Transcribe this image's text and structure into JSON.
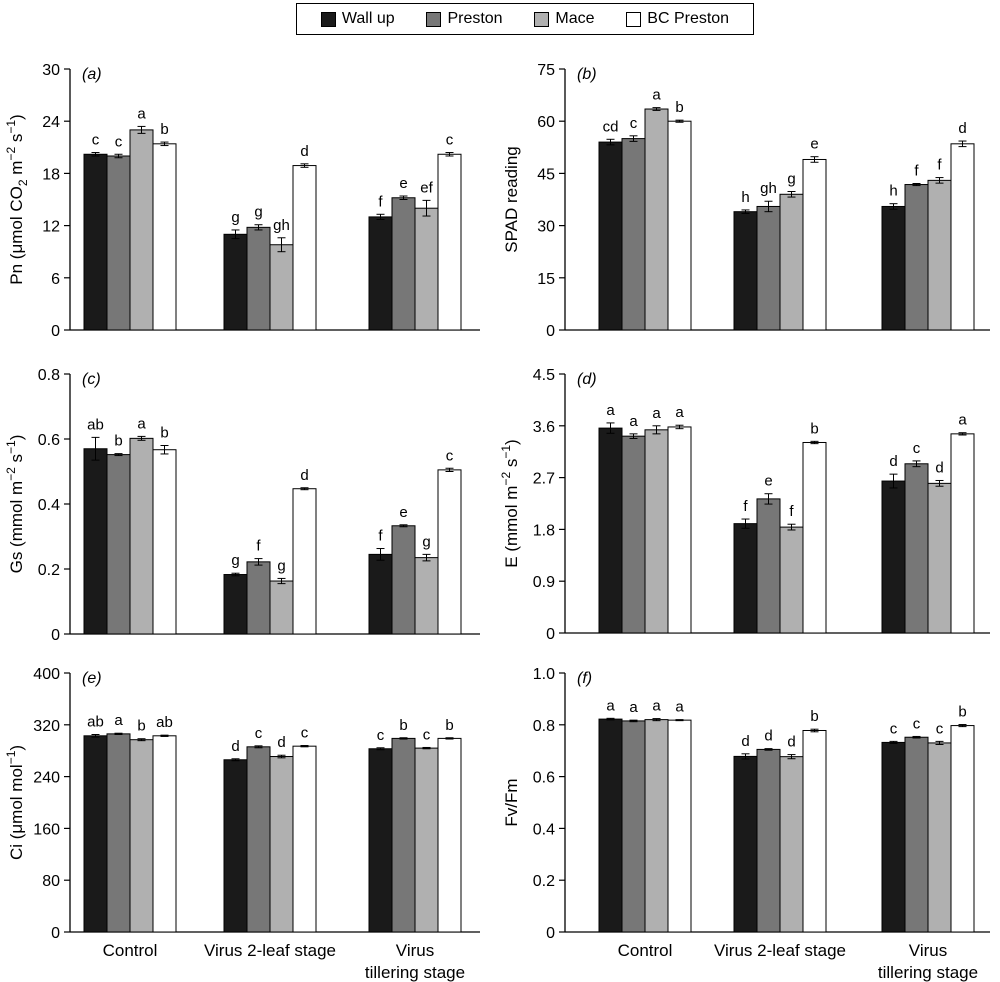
{
  "legend": [
    {
      "name": "Wall up",
      "color": "#1a1a1a"
    },
    {
      "name": "Preston",
      "color": "#777777"
    },
    {
      "name": "Mace",
      "color": "#b0b0b0"
    },
    {
      "name": "BC Preston",
      "color": "#ffffff"
    }
  ],
  "chart_data": [
    {
      "type": "bar",
      "panel": "(a)",
      "ylabel_base": "Pn (μmol CO",
      "ylabel_sub": "2",
      "ylabel_mid": " m",
      "ylabel_sup1": "−2",
      "ylabel_mid2": " s",
      "ylabel_sup2": "−1",
      "ylabel_end": ")",
      "ylim": [
        0,
        30
      ],
      "yticks": [
        "0",
        "6",
        "12",
        "18",
        "24",
        "30"
      ],
      "ytick_values": [
        0,
        6,
        12,
        18,
        24,
        30
      ],
      "categories": [
        "Control",
        "Virus 2-leaf stage",
        "Virus tillering stage"
      ],
      "series": [
        {
          "name": "Wall up",
          "values": [
            20.2,
            11.0,
            13.0
          ],
          "errors": [
            0.2,
            0.5,
            0.3
          ],
          "letters": [
            "c",
            "g",
            "f"
          ]
        },
        {
          "name": "Preston",
          "values": [
            20.0,
            11.8,
            15.2
          ],
          "errors": [
            0.2,
            0.3,
            0.2
          ],
          "letters": [
            "c",
            "g",
            "e"
          ]
        },
        {
          "name": "Mace",
          "values": [
            23.0,
            9.8,
            14.0
          ],
          "errors": [
            0.4,
            0.8,
            0.9
          ],
          "letters": [
            "a",
            "gh",
            "ef"
          ]
        },
        {
          "name": "BC Preston",
          "values": [
            21.4,
            18.9,
            20.2
          ],
          "errors": [
            0.2,
            0.2,
            0.2
          ],
          "letters": [
            "b",
            "d",
            "c"
          ]
        }
      ]
    },
    {
      "type": "bar",
      "panel": "(b)",
      "ylabel_base": "SPAD reading",
      "ylim": [
        0,
        75
      ],
      "yticks": [
        "0",
        "15",
        "30",
        "45",
        "60",
        "75"
      ],
      "ytick_values": [
        0,
        15,
        30,
        45,
        60,
        75
      ],
      "categories": [
        "Control",
        "Virus 2-leaf stage",
        "Virus tillering stage"
      ],
      "series": [
        {
          "name": "Wall up",
          "values": [
            54.0,
            34.0,
            35.5
          ],
          "errors": [
            0.8,
            0.5,
            0.8
          ],
          "letters": [
            "cd",
            "h",
            "h"
          ]
        },
        {
          "name": "Preston",
          "values": [
            55.0,
            35.5,
            41.8
          ],
          "errors": [
            0.8,
            1.5,
            0.3
          ],
          "letters": [
            "c",
            "gh",
            "f"
          ]
        },
        {
          "name": "Mace",
          "values": [
            63.5,
            39.0,
            43.0
          ],
          "errors": [
            0.4,
            0.8,
            0.8
          ],
          "letters": [
            "a",
            "g",
            "f"
          ]
        },
        {
          "name": "BC Preston",
          "values": [
            60.0,
            49.0,
            53.5
          ],
          "errors": [
            0.3,
            0.8,
            0.8
          ],
          "letters": [
            "b",
            "e",
            "d"
          ]
        }
      ]
    },
    {
      "type": "bar",
      "panel": "(c)",
      "ylabel_base": "Gs (mmol m",
      "ylabel_sup1": "−2",
      "ylabel_mid2": " s",
      "ylabel_sup2": "−1",
      "ylabel_end": ")",
      "ylim": [
        0,
        0.8
      ],
      "yticks": [
        "0",
        "0.2",
        "0.4",
        "0.6",
        "0.8"
      ],
      "ytick_values": [
        0,
        0.2,
        0.4,
        0.6,
        0.8
      ],
      "categories": [
        "Control",
        "Virus 2-leaf stage",
        "Virus tillering stage"
      ],
      "series": [
        {
          "name": "Wall up",
          "values": [
            0.57,
            0.183,
            0.245
          ],
          "errors": [
            0.035,
            0.004,
            0.018
          ],
          "letters": [
            "ab",
            "g",
            "f"
          ]
        },
        {
          "name": "Preston",
          "values": [
            0.552,
            0.222,
            0.333
          ],
          "errors": [
            0.003,
            0.01,
            0.003
          ],
          "letters": [
            "b",
            "f",
            "e"
          ]
        },
        {
          "name": "Mace",
          "values": [
            0.602,
            0.163,
            0.235
          ],
          "errors": [
            0.006,
            0.008,
            0.01
          ],
          "letters": [
            "a",
            "g",
            "g"
          ]
        },
        {
          "name": "BC Preston",
          "values": [
            0.567,
            0.447,
            0.505
          ],
          "errors": [
            0.013,
            0.003,
            0.005
          ],
          "letters": [
            "b",
            "d",
            "c"
          ]
        }
      ]
    },
    {
      "type": "bar",
      "panel": "(d)",
      "ylabel_base": "E (mmol m",
      "ylabel_sup1": "−2",
      "ylabel_mid2": " s",
      "ylabel_sup2": "−1",
      "ylabel_end": ")",
      "ylim": [
        0,
        4.5
      ],
      "yticks": [
        "0",
        "0.9",
        "1.8",
        "2.7",
        "3.6",
        "4.5"
      ],
      "ytick_values": [
        0,
        0.9,
        1.8,
        2.7,
        3.6,
        4.5
      ],
      "categories": [
        "Control",
        "Virus 2-leaf stage",
        "Virus tillering stage"
      ],
      "series": [
        {
          "name": "Wall up",
          "values": [
            3.56,
            1.9,
            2.64
          ],
          "errors": [
            0.09,
            0.08,
            0.12
          ],
          "letters": [
            "a",
            "f",
            "d"
          ]
        },
        {
          "name": "Preston",
          "values": [
            3.42,
            2.33,
            2.94
          ],
          "errors": [
            0.04,
            0.09,
            0.05
          ],
          "letters": [
            "a",
            "e",
            "c"
          ]
        },
        {
          "name": "Mace",
          "values": [
            3.53,
            1.84,
            2.6
          ],
          "errors": [
            0.07,
            0.05,
            0.05
          ],
          "letters": [
            "a",
            "f",
            "d"
          ]
        },
        {
          "name": "BC Preston",
          "values": [
            3.58,
            3.31,
            3.46
          ],
          "errors": [
            0.03,
            0.02,
            0.02
          ],
          "letters": [
            "a",
            "b",
            "a"
          ]
        }
      ]
    },
    {
      "type": "bar",
      "panel": "(e)",
      "ylabel_base": "Ci (μmol mol",
      "ylabel_sup1": "−1",
      "ylabel_end": ")",
      "ylim": [
        0,
        400
      ],
      "yticks": [
        "0",
        "80",
        "160",
        "240",
        "320",
        "400"
      ],
      "ytick_values": [
        0,
        80,
        160,
        240,
        320,
        400
      ],
      "categories": [
        "Control",
        "Virus 2-leaf stage",
        "Virus tillering stage"
      ],
      "category_lines": [
        [
          "Control"
        ],
        [
          "Virus 2-leaf stage"
        ],
        [
          "Virus",
          "tillering stage"
        ]
      ],
      "series": [
        {
          "name": "Wall up",
          "values": [
            303,
            266,
            283
          ],
          "errors": [
            2,
            1.5,
            1.5
          ],
          "letters": [
            "ab",
            "d",
            "c"
          ]
        },
        {
          "name": "Preston",
          "values": [
            306,
            286,
            299
          ],
          "errors": [
            1,
            1.5,
            1
          ],
          "letters": [
            "a",
            "c",
            "b"
          ]
        },
        {
          "name": "Mace",
          "values": [
            297,
            271,
            284
          ],
          "errors": [
            1.5,
            2,
            1
          ],
          "letters": [
            "b",
            "d",
            "c"
          ]
        },
        {
          "name": "BC Preston",
          "values": [
            303,
            287,
            299
          ],
          "errors": [
            1,
            1,
            1
          ],
          "letters": [
            "ab",
            "c",
            "b"
          ]
        }
      ]
    },
    {
      "type": "bar",
      "panel": "(f)",
      "ylabel_base": "Fv/Fm",
      "ylim": [
        0,
        1.0
      ],
      "yticks": [
        "0",
        "0.2",
        "0.4",
        "0.6",
        "0.8",
        "1.0"
      ],
      "ytick_values": [
        0,
        0.2,
        0.4,
        0.6,
        0.8,
        1.0
      ],
      "categories": [
        "Control",
        "Virus 2-leaf stage",
        "Virus tillering stage"
      ],
      "category_lines": [
        [
          "Control"
        ],
        [
          "Virus 2-leaf stage"
        ],
        [
          "Virus",
          "tillering stage"
        ]
      ],
      "series": [
        {
          "name": "Wall up",
          "values": [
            0.822,
            0.678,
            0.732
          ],
          "errors": [
            0.003,
            0.01,
            0.004
          ],
          "letters": [
            "a",
            "d",
            "c"
          ]
        },
        {
          "name": "Preston",
          "values": [
            0.815,
            0.705,
            0.752
          ],
          "errors": [
            0.003,
            0.003,
            0.003
          ],
          "letters": [
            "a",
            "d",
            "c"
          ]
        },
        {
          "name": "Mace",
          "values": [
            0.82,
            0.677,
            0.73
          ],
          "errors": [
            0.004,
            0.008,
            0.006
          ],
          "letters": [
            "a",
            "d",
            "c"
          ]
        },
        {
          "name": "BC Preston",
          "values": [
            0.818,
            0.778,
            0.797
          ],
          "errors": [
            0.002,
            0.005,
            0.004
          ],
          "letters": [
            "a",
            "b",
            "b"
          ]
        }
      ]
    }
  ]
}
